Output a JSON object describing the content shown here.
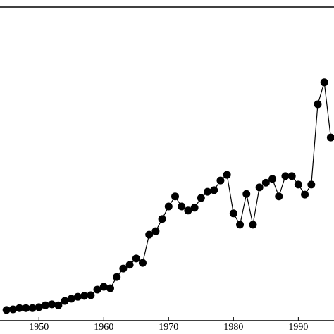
{
  "chart_data": {
    "type": "line",
    "x": [
      1945,
      1946,
      1947,
      1948,
      1949,
      1950,
      1951,
      1952,
      1953,
      1954,
      1955,
      1956,
      1957,
      1958,
      1959,
      1960,
      1961,
      1962,
      1963,
      1964,
      1965,
      1966,
      1967,
      1968,
      1969,
      1970,
      1971,
      1972,
      1973,
      1974,
      1975,
      1976,
      1977,
      1978,
      1979,
      1980,
      1981,
      1982,
      1983,
      1984,
      1985,
      1986,
      1987,
      1988,
      1989,
      1990,
      1991,
      1992,
      1993,
      1994,
      1995
    ],
    "values": [
      3.4,
      3.6,
      4.0,
      4.0,
      4.0,
      4.3,
      4.9,
      5.2,
      4.9,
      6.3,
      7.0,
      7.6,
      7.9,
      8.1,
      9.9,
      10.8,
      10.3,
      13.9,
      16.6,
      17.8,
      19.8,
      18.4,
      27.4,
      28.5,
      32.4,
      36.4,
      39.6,
      36.4,
      35.1,
      36.0,
      39.1,
      41.1,
      41.6,
      44.7,
      46.5,
      34.2,
      30.6,
      40.4,
      30.6,
      42.5,
      44.0,
      45.2,
      39.6,
      46.1,
      46.1,
      43.4,
      40.2,
      43.4,
      69.0,
      76.0,
      58.4
    ],
    "color": "#000000",
    "xlim": [
      1944,
      1995.5
    ],
    "xticks": [
      1950,
      1960,
      1970,
      1980,
      1990
    ],
    "ylim": [
      0,
      100
    ]
  }
}
